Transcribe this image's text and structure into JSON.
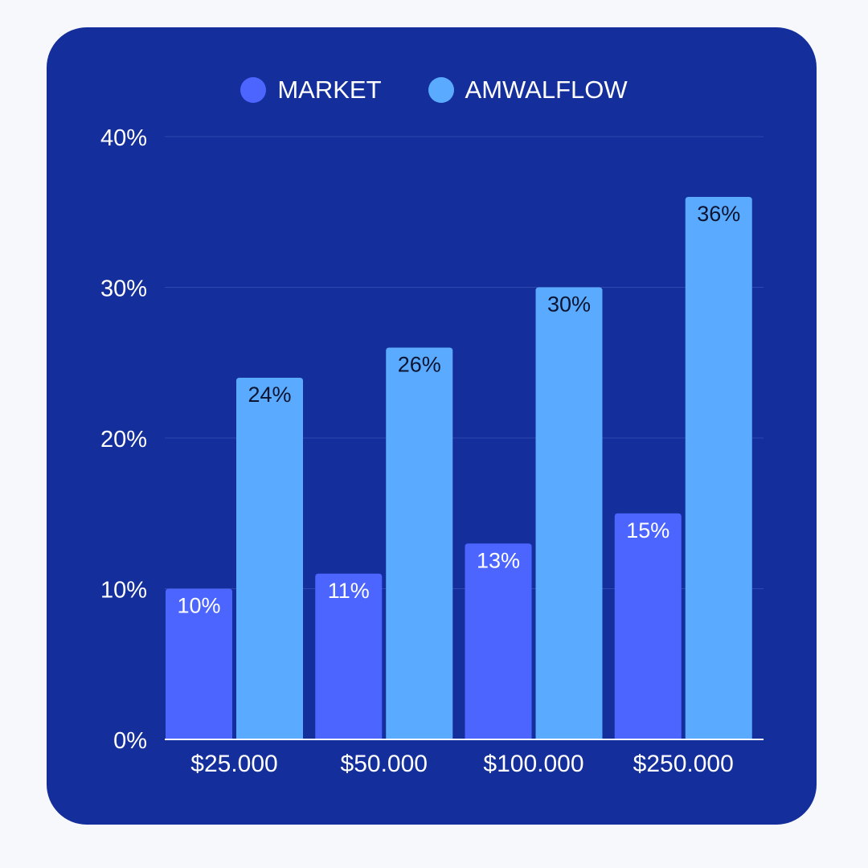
{
  "chart_data": {
    "type": "bar",
    "categories": [
      "$25.000",
      "$50.000",
      "$100.000",
      "$250.000"
    ],
    "series": [
      {
        "name": "MARKET",
        "color": "#4c65ff",
        "values": [
          10,
          11,
          13,
          15
        ],
        "labels": [
          "10%",
          "11%",
          "13%",
          "15%"
        ]
      },
      {
        "name": "AMWALFLOW",
        "color": "#5aabff",
        "values": [
          24,
          26,
          30,
          36
        ],
        "labels": [
          "24%",
          "26%",
          "30%",
          "36%"
        ]
      }
    ],
    "yticks": [
      0,
      10,
      20,
      30,
      40
    ],
    "ytick_labels": [
      "0%",
      "10%",
      "20%",
      "30%",
      "40%"
    ],
    "ylim": [
      0,
      40
    ],
    "grid": true,
    "legend_position": "top-center",
    "colors": {
      "card": "#142e9b",
      "background": "#f6f8fb",
      "gridline": "#2e48ad",
      "text": "#ffffff",
      "label_dark": "#0b1330"
    }
  }
}
